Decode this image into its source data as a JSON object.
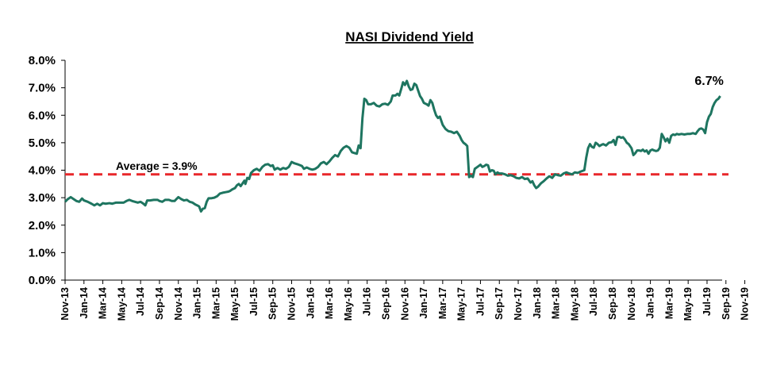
{
  "chart_data": {
    "type": "line",
    "title": "NASI Dividend Yield",
    "xlabel": "",
    "ylabel": "",
    "ylim": [
      0,
      8
    ],
    "yticks": [
      "0.0%",
      "1.0%",
      "2.0%",
      "3.0%",
      "4.0%",
      "5.0%",
      "6.0%",
      "7.0%",
      "8.0%"
    ],
    "categories": [
      "Nov-13",
      "Jan-14",
      "Mar-14",
      "May-14",
      "Jul-14",
      "Sep-14",
      "Nov-14",
      "Jan-15",
      "Mar-15",
      "May-15",
      "Jul-15",
      "Sep-15",
      "Nov-15",
      "Jan-16",
      "Mar-16",
      "May-16",
      "Jul-16",
      "Sep-16",
      "Nov-16",
      "Jan-17",
      "Mar-17",
      "May-17",
      "Jul-17",
      "Sep-17",
      "Nov-17",
      "Jan-18",
      "Mar-18",
      "May-18",
      "Jul-18",
      "Sep-18",
      "Nov-18",
      "Jan-19",
      "Mar-19",
      "May-19",
      "Jul-19",
      "Sep-19",
      "Nov-19"
    ],
    "series": [
      {
        "color": "#1e7560",
        "points": [
          [
            0,
            2.85
          ],
          [
            0.3,
            2.95
          ],
          [
            0.6,
            3.02
          ],
          [
            0.9,
            2.95
          ],
          [
            1.2,
            2.88
          ],
          [
            1.5,
            2.85
          ],
          [
            1.8,
            2.97
          ],
          [
            2.0,
            2.9
          ],
          [
            2.4,
            2.85
          ],
          [
            2.8,
            2.78
          ],
          [
            3.1,
            2.72
          ],
          [
            3.4,
            2.78
          ],
          [
            3.7,
            2.72
          ],
          [
            4.0,
            2.8
          ],
          [
            4.3,
            2.78
          ],
          [
            4.7,
            2.8
          ],
          [
            5.0,
            2.78
          ],
          [
            5.4,
            2.82
          ],
          [
            5.8,
            2.82
          ],
          [
            6.2,
            2.82
          ],
          [
            6.5,
            2.88
          ],
          [
            6.8,
            2.92
          ],
          [
            7.1,
            2.88
          ],
          [
            7.4,
            2.85
          ],
          [
            7.7,
            2.82
          ],
          [
            8.0,
            2.85
          ],
          [
            8.3,
            2.78
          ],
          [
            8.5,
            2.72
          ],
          [
            8.7,
            2.9
          ],
          [
            9.0,
            2.9
          ],
          [
            9.4,
            2.92
          ],
          [
            9.8,
            2.92
          ],
          [
            10.0,
            2.88
          ],
          [
            10.3,
            2.85
          ],
          [
            10.6,
            2.92
          ],
          [
            11.0,
            2.92
          ],
          [
            11.3,
            2.88
          ],
          [
            11.6,
            2.88
          ],
          [
            11.8,
            2.95
          ],
          [
            12.0,
            3.02
          ],
          [
            12.3,
            2.95
          ],
          [
            12.6,
            2.9
          ],
          [
            12.9,
            2.92
          ],
          [
            13.2,
            2.85
          ],
          [
            13.5,
            2.82
          ],
          [
            13.8,
            2.75
          ],
          [
            14.0,
            2.72
          ],
          [
            14.2,
            2.68
          ],
          [
            14.4,
            2.5
          ],
          [
            14.6,
            2.6
          ],
          [
            14.8,
            2.62
          ],
          [
            15.0,
            2.85
          ],
          [
            15.2,
            2.98
          ],
          [
            15.5,
            2.98
          ],
          [
            15.8,
            3.0
          ],
          [
            16.1,
            3.05
          ],
          [
            16.4,
            3.15
          ],
          [
            16.7,
            3.18
          ],
          [
            17.0,
            3.2
          ],
          [
            17.3,
            3.22
          ],
          [
            17.5,
            3.25
          ],
          [
            17.7,
            3.3
          ],
          [
            18.0,
            3.35
          ],
          [
            18.2,
            3.45
          ],
          [
            18.4,
            3.5
          ],
          [
            18.6,
            3.42
          ],
          [
            18.8,
            3.52
          ],
          [
            19.0,
            3.62
          ],
          [
            19.1,
            3.5
          ],
          [
            19.3,
            3.72
          ],
          [
            19.5,
            3.68
          ],
          [
            19.7,
            3.9
          ],
          [
            20.0,
            4.0
          ],
          [
            20.3,
            4.05
          ],
          [
            20.6,
            3.98
          ],
          [
            20.9,
            4.12
          ],
          [
            21.2,
            4.2
          ],
          [
            21.5,
            4.22
          ],
          [
            21.8,
            4.15
          ],
          [
            22.0,
            4.18
          ],
          [
            22.2,
            4.02
          ],
          [
            22.5,
            4.08
          ],
          [
            22.8,
            4.02
          ],
          [
            23.1,
            4.08
          ],
          [
            23.4,
            4.05
          ],
          [
            23.7,
            4.12
          ],
          [
            24.0,
            4.3
          ],
          [
            24.3,
            4.25
          ],
          [
            24.6,
            4.22
          ],
          [
            24.9,
            4.18
          ],
          [
            25.1,
            4.15
          ],
          [
            25.3,
            4.05
          ],
          [
            25.6,
            4.1
          ],
          [
            25.9,
            4.05
          ],
          [
            26.2,
            4.02
          ],
          [
            26.5,
            4.05
          ],
          [
            26.8,
            4.12
          ],
          [
            27.1,
            4.25
          ],
          [
            27.4,
            4.3
          ],
          [
            27.7,
            4.22
          ],
          [
            28.0,
            4.32
          ],
          [
            28.3,
            4.45
          ],
          [
            28.6,
            4.55
          ],
          [
            28.9,
            4.5
          ],
          [
            29.2,
            4.7
          ],
          [
            29.5,
            4.82
          ],
          [
            29.8,
            4.88
          ],
          [
            30.1,
            4.82
          ],
          [
            30.4,
            4.65
          ],
          [
            30.7,
            4.62
          ],
          [
            30.9,
            4.6
          ],
          [
            31.1,
            4.9
          ],
          [
            31.3,
            4.8
          ],
          [
            31.5,
            5.9
          ],
          [
            31.7,
            6.6
          ],
          [
            31.9,
            6.55
          ],
          [
            32.1,
            6.4
          ],
          [
            32.4,
            6.4
          ],
          [
            32.7,
            6.45
          ],
          [
            33.0,
            6.35
          ],
          [
            33.3,
            6.32
          ],
          [
            33.6,
            6.4
          ],
          [
            33.9,
            6.42
          ],
          [
            34.2,
            6.38
          ],
          [
            34.5,
            6.5
          ],
          [
            34.7,
            6.72
          ],
          [
            35.0,
            6.72
          ],
          [
            35.2,
            6.78
          ],
          [
            35.4,
            6.72
          ],
          [
            35.6,
            6.95
          ],
          [
            35.8,
            7.2
          ],
          [
            36.0,
            7.1
          ],
          [
            36.2,
            7.25
          ],
          [
            36.4,
            7.05
          ],
          [
            36.6,
            6.92
          ],
          [
            36.8,
            6.95
          ],
          [
            37.0,
            7.15
          ],
          [
            37.2,
            7.1
          ],
          [
            37.4,
            6.9
          ],
          [
            37.6,
            6.7
          ],
          [
            37.8,
            6.6
          ],
          [
            38.0,
            6.45
          ],
          [
            38.3,
            6.4
          ],
          [
            38.5,
            6.35
          ],
          [
            38.7,
            6.55
          ],
          [
            38.9,
            6.45
          ],
          [
            39.1,
            6.2
          ],
          [
            39.3,
            6.0
          ],
          [
            39.5,
            5.9
          ],
          [
            39.7,
            5.95
          ],
          [
            40.0,
            5.65
          ],
          [
            40.3,
            5.5
          ],
          [
            40.6,
            5.42
          ],
          [
            40.9,
            5.4
          ],
          [
            41.2,
            5.35
          ],
          [
            41.5,
            5.4
          ],
          [
            41.8,
            5.25
          ],
          [
            42.0,
            5.1
          ],
          [
            42.2,
            5.0
          ],
          [
            42.4,
            4.95
          ],
          [
            42.6,
            4.88
          ],
          [
            42.8,
            3.75
          ],
          [
            43.0,
            3.8
          ],
          [
            43.2,
            3.75
          ],
          [
            43.4,
            4.05
          ],
          [
            43.6,
            4.1
          ],
          [
            43.8,
            4.15
          ],
          [
            44.0,
            4.2
          ],
          [
            44.2,
            4.12
          ],
          [
            44.4,
            4.15
          ],
          [
            44.6,
            4.2
          ],
          [
            44.8,
            4.18
          ],
          [
            45.0,
            3.95
          ],
          [
            45.2,
            4.0
          ],
          [
            45.4,
            3.98
          ],
          [
            45.6,
            3.85
          ],
          [
            45.8,
            3.92
          ],
          [
            46.0,
            3.88
          ],
          [
            46.3,
            3.88
          ],
          [
            46.6,
            3.85
          ],
          [
            46.9,
            3.8
          ],
          [
            47.2,
            3.82
          ],
          [
            47.5,
            3.78
          ],
          [
            47.8,
            3.72
          ],
          [
            48.1,
            3.7
          ],
          [
            48.4,
            3.75
          ],
          [
            48.7,
            3.68
          ],
          [
            49.0,
            3.7
          ],
          [
            49.3,
            3.55
          ],
          [
            49.5,
            3.6
          ],
          [
            49.7,
            3.45
          ],
          [
            49.9,
            3.35
          ],
          [
            50.1,
            3.4
          ],
          [
            50.4,
            3.52
          ],
          [
            50.7,
            3.6
          ],
          [
            51.0,
            3.7
          ],
          [
            51.3,
            3.78
          ],
          [
            51.6,
            3.72
          ],
          [
            51.9,
            3.85
          ],
          [
            52.2,
            3.82
          ],
          [
            52.5,
            3.8
          ],
          [
            52.8,
            3.88
          ],
          [
            53.1,
            3.92
          ],
          [
            53.4,
            3.88
          ],
          [
            53.7,
            3.85
          ],
          [
            54.0,
            3.92
          ],
          [
            54.3,
            3.9
          ],
          [
            54.6,
            3.95
          ],
          [
            55.0,
            4.0
          ],
          [
            55.2,
            4.45
          ],
          [
            55.4,
            4.8
          ],
          [
            55.6,
            4.95
          ],
          [
            55.8,
            4.85
          ],
          [
            56.0,
            4.82
          ],
          [
            56.2,
            5.0
          ],
          [
            56.4,
            4.95
          ],
          [
            56.6,
            4.88
          ],
          [
            56.8,
            4.92
          ],
          [
            57.0,
            4.95
          ],
          [
            57.3,
            4.9
          ],
          [
            57.6,
            5.0
          ],
          [
            57.9,
            5.02
          ],
          [
            58.1,
            5.1
          ],
          [
            58.3,
            4.92
          ],
          [
            58.5,
            5.2
          ],
          [
            58.7,
            5.22
          ],
          [
            58.9,
            5.18
          ],
          [
            59.1,
            5.2
          ],
          [
            59.3,
            5.12
          ],
          [
            59.5,
            5.0
          ],
          [
            59.7,
            4.95
          ],
          [
            60.0,
            4.8
          ],
          [
            60.2,
            4.55
          ],
          [
            60.4,
            4.62
          ],
          [
            60.6,
            4.72
          ],
          [
            60.8,
            4.72
          ],
          [
            61.0,
            4.7
          ],
          [
            61.2,
            4.75
          ],
          [
            61.4,
            4.68
          ],
          [
            61.6,
            4.72
          ],
          [
            61.8,
            4.6
          ],
          [
            62.0,
            4.72
          ],
          [
            62.2,
            4.75
          ],
          [
            62.4,
            4.72
          ],
          [
            62.6,
            4.7
          ],
          [
            62.8,
            4.72
          ],
          [
            63.0,
            4.82
          ],
          [
            63.2,
            5.32
          ],
          [
            63.4,
            5.2
          ],
          [
            63.6,
            5.05
          ],
          [
            63.8,
            5.15
          ],
          [
            64.0,
            5.0
          ],
          [
            64.2,
            5.25
          ],
          [
            64.4,
            5.3
          ],
          [
            64.6,
            5.28
          ],
          [
            64.8,
            5.32
          ],
          [
            65.0,
            5.3
          ],
          [
            65.3,
            5.32
          ],
          [
            65.6,
            5.3
          ],
          [
            65.9,
            5.32
          ],
          [
            66.2,
            5.32
          ],
          [
            66.5,
            5.35
          ],
          [
            66.8,
            5.32
          ],
          [
            67.0,
            5.42
          ],
          [
            67.2,
            5.5
          ],
          [
            67.4,
            5.52
          ],
          [
            67.6,
            5.48
          ],
          [
            67.8,
            5.35
          ],
          [
            68.0,
            5.75
          ],
          [
            68.2,
            5.95
          ],
          [
            68.4,
            6.05
          ],
          [
            68.6,
            6.3
          ],
          [
            68.8,
            6.45
          ],
          [
            69.0,
            6.55
          ],
          [
            69.2,
            6.6
          ],
          [
            69.4,
            6.7
          ]
        ]
      }
    ],
    "x_count": 69.6,
    "average": {
      "value": 3.85,
      "label": "Average  = 3.9%",
      "color": "#e8272a"
    },
    "last_label": "6.7%",
    "grid": false,
    "legend": "none"
  }
}
